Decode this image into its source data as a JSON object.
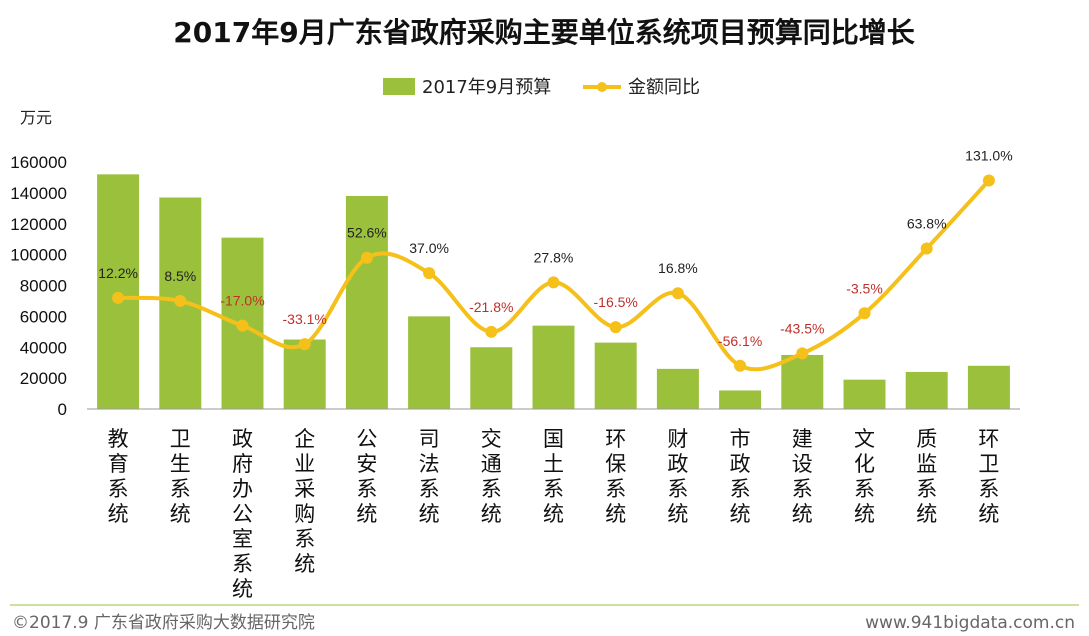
{
  "chart_data": {
    "type": "bar",
    "title": "2017年9月广东省政府采购主要单位系统项目预算同比增长",
    "ylabel": "万元",
    "ylim": [
      0,
      160000
    ],
    "yticks": [
      "0",
      "20000",
      "40000",
      "60000",
      "80000",
      "100000",
      "120000",
      "140000",
      "160000"
    ],
    "categories": [
      "教育系统",
      "卫生系统",
      "政府办公室系统",
      "企业采购系统",
      "公安系统",
      "司法系统",
      "交通系统",
      "国土系统",
      "环保系统",
      "财政系统",
      "市政系统",
      "建设系统",
      "文化系统",
      "质监系统",
      "环卫系统"
    ],
    "series": [
      {
        "name": "2017年9月预算",
        "type": "bar",
        "color": "#9BC13C",
        "values": [
          152000,
          137000,
          111000,
          45000,
          138000,
          60000,
          40000,
          54000,
          43000,
          26000,
          12000,
          35000,
          19000,
          24000,
          28000
        ]
      },
      {
        "name": "金额同比",
        "type": "line",
        "color": "#F5C01A",
        "values": [
          72000,
          70000,
          54000,
          42000,
          98000,
          88000,
          50000,
          82000,
          53000,
          75000,
          28000,
          36000,
          62000,
          104000,
          148000
        ],
        "labels": [
          "12.2%",
          "8.5%",
          "-17.0%",
          "-33.1%",
          "52.6%",
          "37.0%",
          "-21.8%",
          "27.8%",
          "-16.5%",
          "16.8%",
          "-56.1%",
          "-43.5%",
          "-3.5%",
          "63.8%",
          "131.0%"
        ]
      }
    ],
    "legend_position": "top-center"
  },
  "colors": {
    "positive_label": "#222222",
    "negative_label": "#C0302A",
    "axis": "#999999",
    "footer_line": "#9BC13C"
  },
  "footer": {
    "left": "©2017.9 广东省政府采购大数据研究院",
    "right": "www.941bigdata.com.cn"
  }
}
